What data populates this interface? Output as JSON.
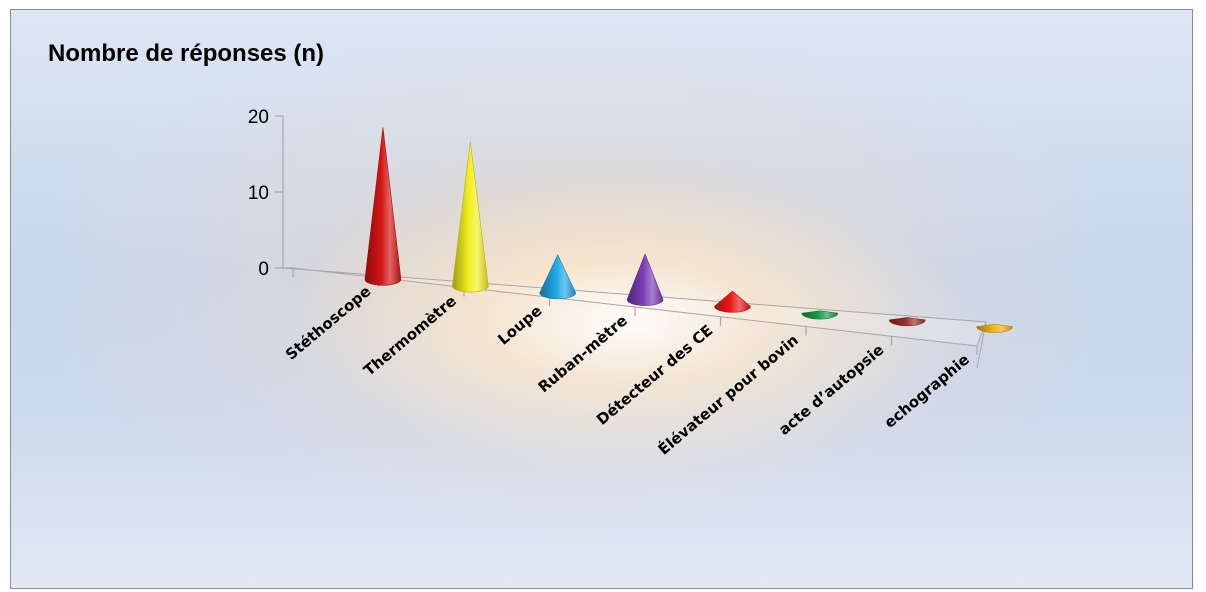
{
  "chart_data": {
    "type": "bar",
    "bar_shape": "cone-3d",
    "title": "Nombre de réponses (n)",
    "xlabel": "",
    "ylabel": "",
    "categories": [
      "Stéthoscope",
      "Thermomètre",
      "Loupe",
      "Ruban-mètre",
      "Détecteur des CE",
      "Élévateur pour bovin",
      "acte d’autopsie",
      "echographie"
    ],
    "values": [
      20,
      19,
      5,
      6,
      2,
      0.3,
      0.3,
      0.3
    ],
    "colors": [
      "#d41414",
      "#f2ee1e",
      "#1fa9e6",
      "#7a3db3",
      "#ee1818",
      "#1a9c48",
      "#9c2e2a",
      "#f5b010"
    ],
    "ylim": [
      0,
      20
    ],
    "yticks": [
      "0",
      "10",
      "20"
    ],
    "grid": false,
    "legend": "none"
  }
}
